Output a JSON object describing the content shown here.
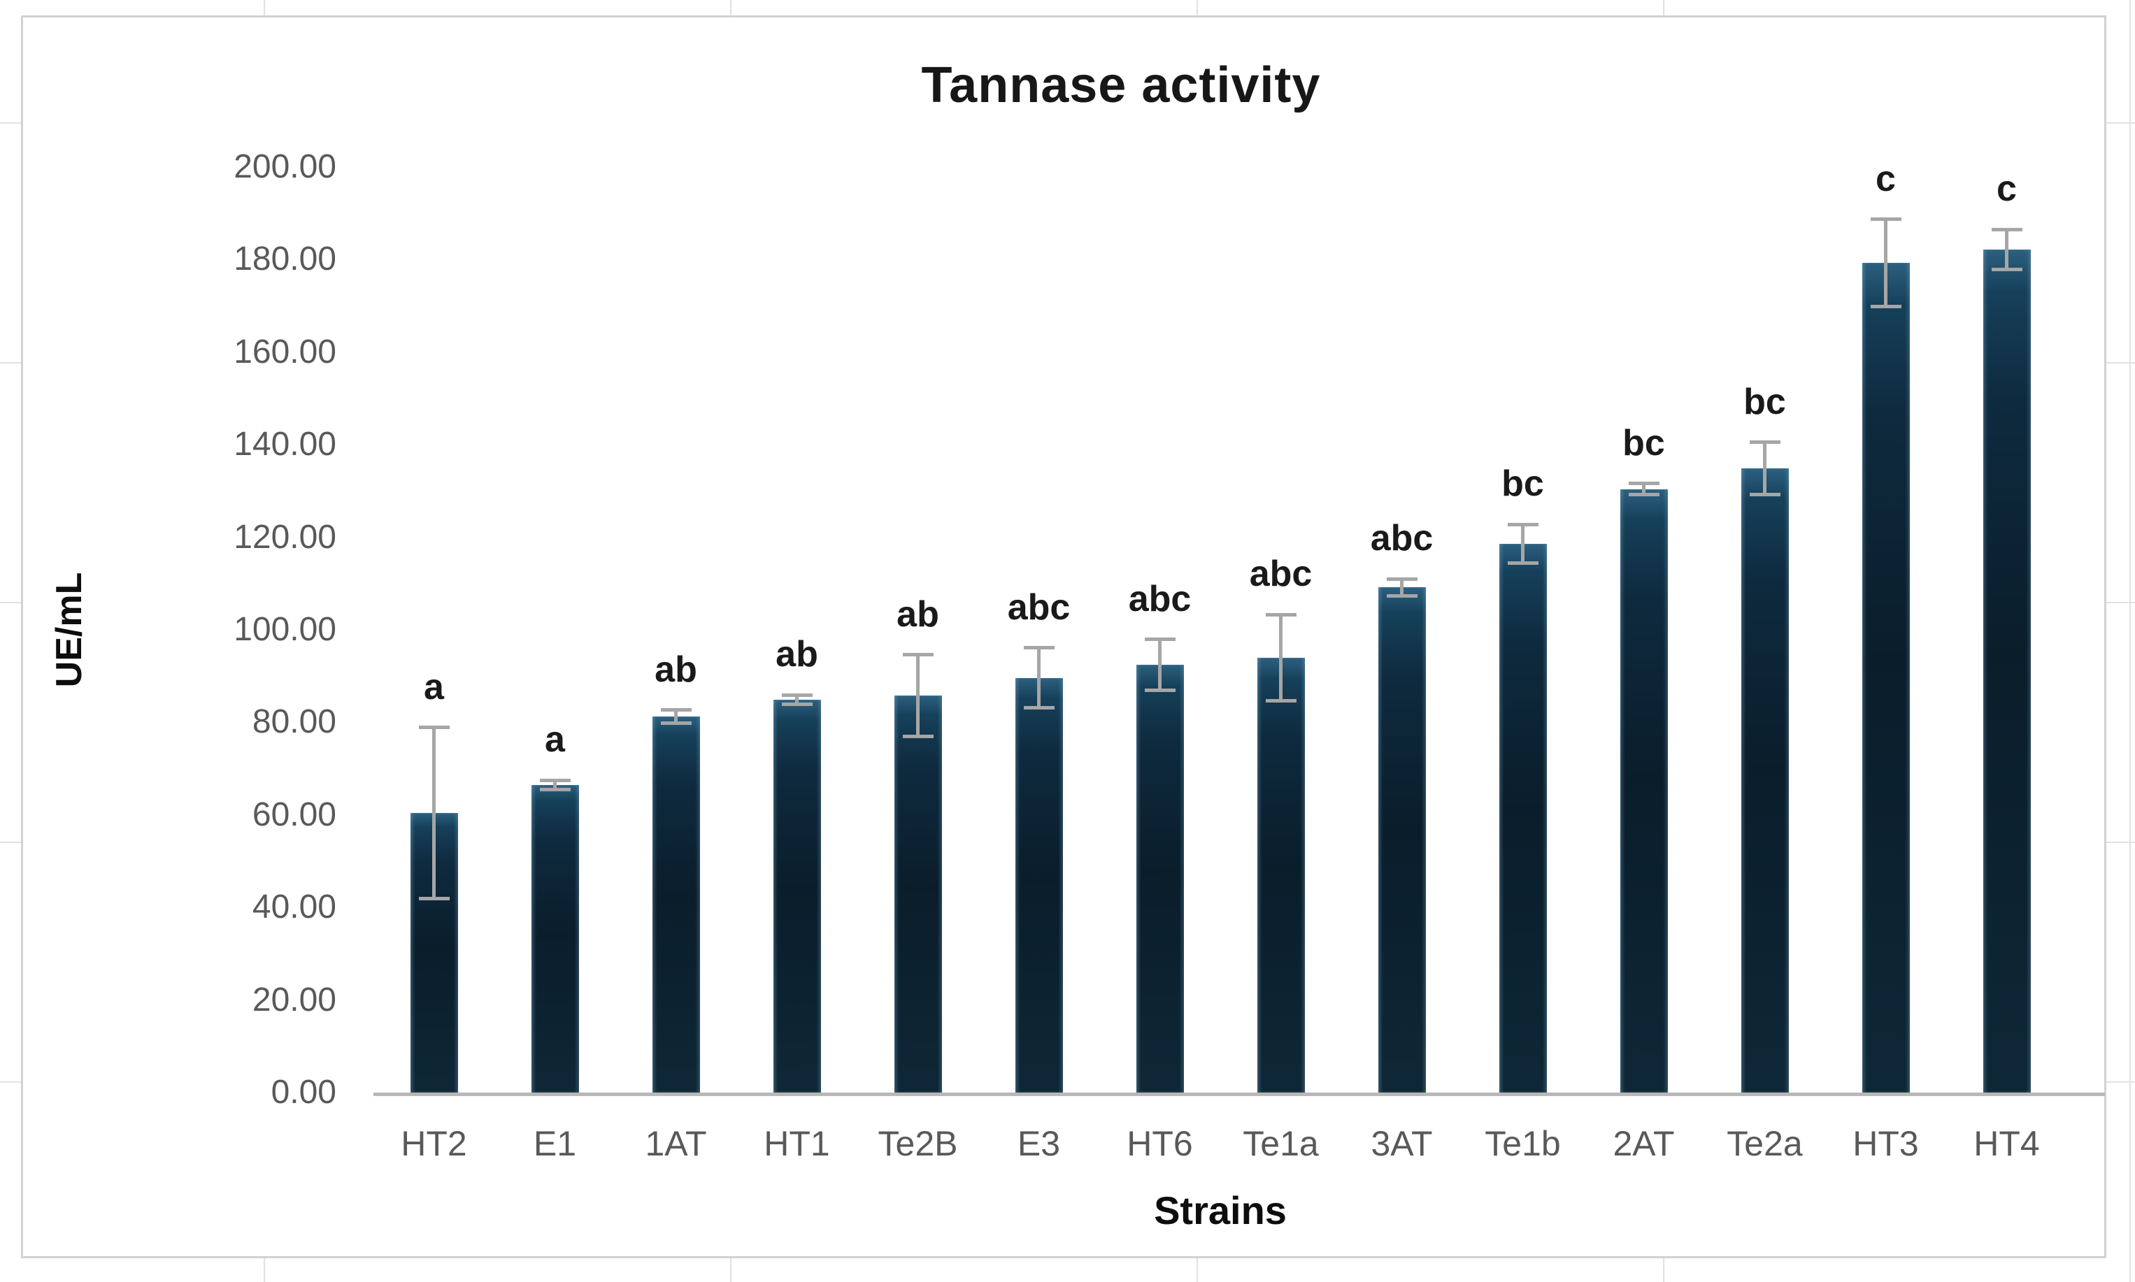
{
  "chart_data": {
    "type": "bar",
    "title": "Tannase activity",
    "xlabel": "Strains",
    "ylabel": "UE/mL",
    "ylim": [
      0,
      200
    ],
    "ytick_step": 20,
    "ytick_labels": [
      "0.00",
      "20.00",
      "40.00",
      "60.00",
      "80.00",
      "100.00",
      "120.00",
      "140.00",
      "160.00",
      "180.00",
      "200.00"
    ],
    "grid": false,
    "legend": "none",
    "categories": [
      "HT2",
      "E1",
      "1AT",
      "HT1",
      "Te2B",
      "E3",
      "HT6",
      "Te1a",
      "3AT",
      "Te1b",
      "2AT",
      "Te2a",
      "HT3",
      "HT4"
    ],
    "series": [
      {
        "name": "Tannase activity",
        "values": [
          60.4,
          66.5,
          81.3,
          84.9,
          85.8,
          89.6,
          92.4,
          94.0,
          109.2,
          118.6,
          130.4,
          134.9,
          179.3,
          182.2
        ],
        "error_bars": [
          18.5,
          1.0,
          1.4,
          1.0,
          8.8,
          6.5,
          5.5,
          9.3,
          1.8,
          4.2,
          1.2,
          5.6,
          9.4,
          4.3
        ]
      }
    ],
    "sig_letters": [
      "a",
      "a",
      "ab",
      "ab",
      "ab",
      "abc",
      "abc",
      "abc",
      "abc",
      "bc",
      "bc",
      "bc",
      "c",
      "c"
    ],
    "colors": {
      "bar_top": "#2c607f",
      "bar_body": "#0a1d2b",
      "error_bar": "#a6a6a6",
      "axis_line": "#b8b8b8",
      "tick_label": "#595959",
      "text": "#171717",
      "frame_border": "#d2d2d2",
      "background": "#ffffff"
    }
  }
}
